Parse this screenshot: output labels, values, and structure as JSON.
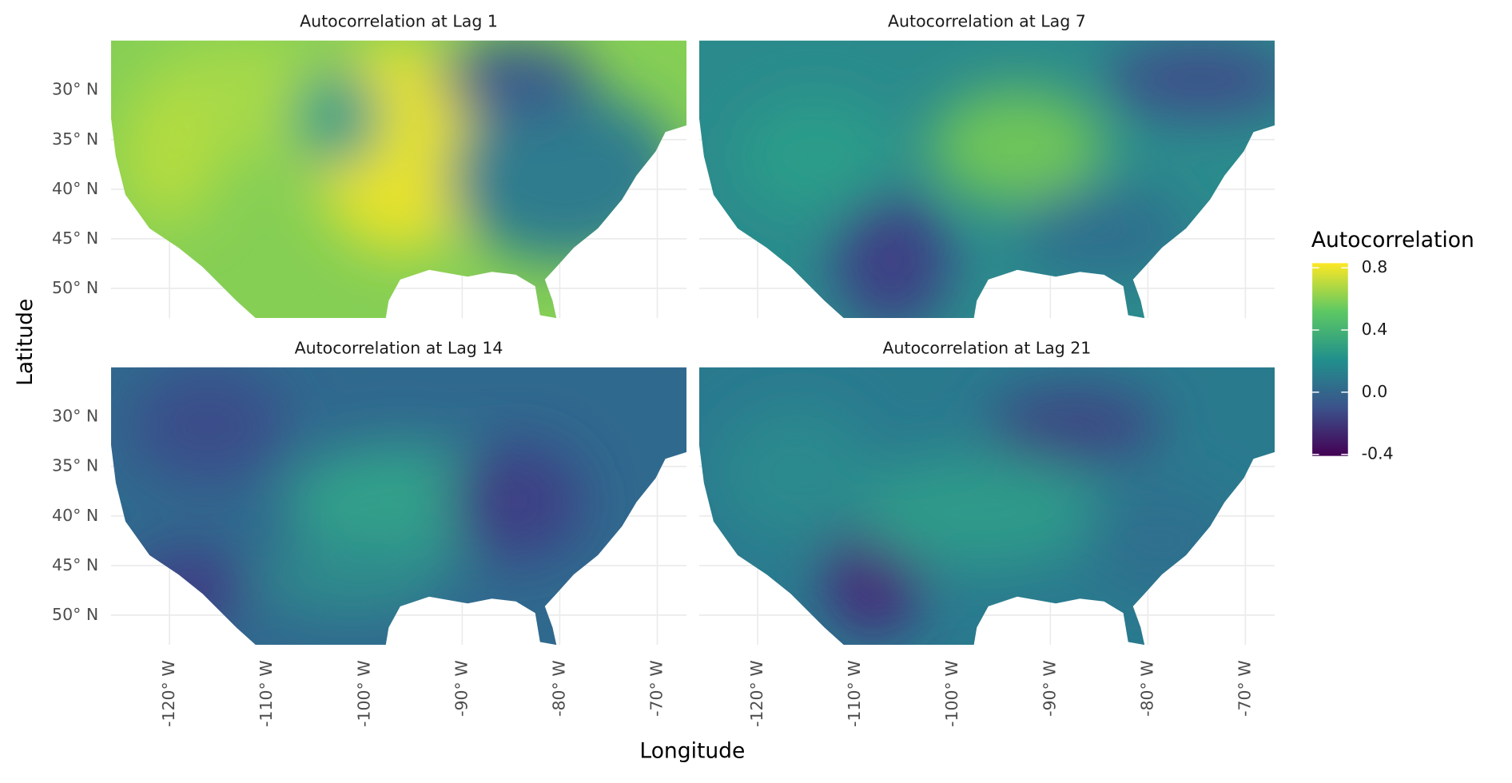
{
  "chart_data": {
    "type": "raster",
    "facets": [
      "Autocorrelation at Lag 1",
      "Autocorrelation at Lag 7",
      "Autocorrelation at Lag 14",
      "Autocorrelation at Lag 21"
    ],
    "xlabel": "Longitude",
    "ylabel": "Latitude",
    "xlim": [
      -126,
      -67
    ],
    "ylim": [
      25,
      53
    ],
    "xticks": [
      {
        "value": -120,
        "label": "-120° W"
      },
      {
        "value": -110,
        "label": "-110° W"
      },
      {
        "value": -100,
        "label": "-100° W"
      },
      {
        "value": -90,
        "label": "-90° W"
      },
      {
        "value": -80,
        "label": "-80° W"
      },
      {
        "value": -70,
        "label": "-70° W"
      }
    ],
    "yticks": [
      {
        "value": 30,
        "label": "30° N"
      },
      {
        "value": 35,
        "label": "35° N"
      },
      {
        "value": 40,
        "label": "40° N"
      },
      {
        "value": 45,
        "label": "45° N"
      },
      {
        "value": 50,
        "label": "50° N"
      }
    ],
    "grid": true,
    "colorbar": {
      "title": "Autocorrelation",
      "lim": [
        -0.41,
        0.83
      ],
      "ticks": [
        {
          "value": 0.8,
          "label": "0.8"
        },
        {
          "value": 0.4,
          "label": "0.4"
        },
        {
          "value": 0,
          "label": "0.0"
        },
        {
          "value": -0.4,
          "label": "-0.4"
        }
      ],
      "colors": [
        "#440154",
        "#3b528b",
        "#21908c",
        "#5dc863",
        "#fde725"
      ]
    }
  }
}
